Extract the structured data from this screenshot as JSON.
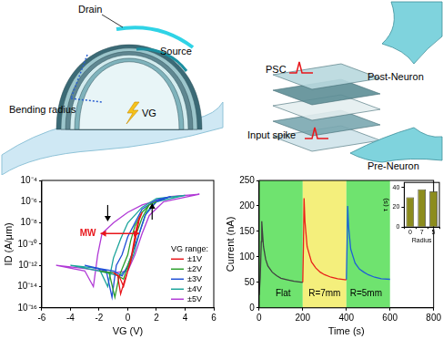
{
  "diagram": {
    "device": {
      "drain": "Drain",
      "source": "Source",
      "bending": "Bending radius",
      "gate": "VG"
    },
    "synapse": {
      "psc": "PSC",
      "input": "Input spike",
      "pre": "Pre-Neuron",
      "post": "Post-Neuron"
    }
  },
  "chart_data": [
    {
      "type": "line",
      "x_label": "VG (V)",
      "y_label": "ID (A/μm)",
      "log": "y",
      "xlim": [
        -6,
        6
      ],
      "xticks": [
        -6,
        -4,
        -2,
        0,
        2,
        4,
        6
      ],
      "ylim": [
        1e-16,
        0.0001
      ],
      "yticks": [
        {
          "value": 1e-16,
          "label": "10⁻¹⁶"
        },
        {
          "value": 1e-14,
          "label": "10⁻¹⁴"
        },
        {
          "value": 1e-12,
          "label": "10⁻¹²"
        },
        {
          "value": 1e-10,
          "label": "10⁻¹⁰"
        },
        {
          "value": 1e-08,
          "label": "10⁻⁸"
        },
        {
          "value": 1e-06,
          "label": "10⁻⁶"
        },
        {
          "value": 0.0001,
          "label": "10⁻⁴"
        }
      ],
      "grid": false,
      "legend": "lower right",
      "legend_title": "VG range:",
      "series": [
        {
          "name": "±1V",
          "color": "#e8161b",
          "x": [
            -1,
            -0.6,
            -0.3,
            0,
            0.2,
            0.4,
            0.6,
            0.8,
            1,
            0.8,
            0.6,
            0.4,
            0.2,
            0,
            -0.2,
            -0.5,
            -0.7,
            -1
          ],
          "values": [
            2e-13,
            1e-13,
            1e-14,
            3e-13,
            2e-12,
            5e-11,
            1e-09,
            2e-08,
            1e-07,
            3e-08,
            3e-09,
            1e-10,
            3e-12,
            3e-13,
            5e-14,
            2e-15,
            1e-13,
            2e-13
          ]
        },
        {
          "name": "±2V",
          "color": "#2ca02c",
          "x": [
            -2,
            -1,
            -0.3,
            0,
            0.3,
            0.6,
            1,
            1.5,
            2,
            1.5,
            1,
            0.5,
            0.2,
            0,
            -0.3,
            -0.6,
            -0.9,
            -1.3,
            -2
          ],
          "values": [
            3e-13,
            2e-13,
            5e-14,
            1e-12,
            1e-11,
            1e-09,
            3e-08,
            5e-07,
            1e-06,
            5e-07,
            1e-07,
            5e-09,
            2e-10,
            1e-11,
            1e-12,
            1e-13,
            1e-15,
            2e-13,
            3e-13
          ]
        },
        {
          "name": "±3V",
          "color": "#1f4fd6",
          "x": [
            -3,
            -2,
            -1,
            -0.4,
            0,
            0.4,
            0.8,
            1.2,
            2,
            3,
            2,
            1,
            0.5,
            0,
            -0.4,
            -0.8,
            -1.1,
            -1.5,
            -3
          ],
          "values": [
            1e-12,
            5e-13,
            3e-13,
            1e-13,
            1e-12,
            3e-11,
            1e-09,
            5e-08,
            1e-06,
            3e-06,
            1.5e-06,
            2e-07,
            1e-08,
            5e-10,
            1e-11,
            1e-12,
            1e-15,
            3e-13,
            1e-12
          ]
        },
        {
          "name": "±4V",
          "color": "#1aa39a",
          "x": [
            -4,
            -2,
            -0.6,
            0,
            0.4,
            0.8,
            1.3,
            2,
            4,
            2,
            1,
            0,
            -0.5,
            -1,
            -1.4,
            -2,
            -4
          ],
          "values": [
            1e-12,
            3e-13,
            1e-13,
            5e-13,
            1e-11,
            1e-09,
            1e-07,
            1e-06,
            4e-06,
            2e-06,
            3e-07,
            1e-08,
            3e-10,
            5e-12,
            1e-14,
            5e-13,
            1e-12
          ]
        },
        {
          "name": "±5V",
          "color": "#b13ad6",
          "x": [
            -5,
            -3,
            -1,
            0,
            0.5,
            1,
            1.5,
            2.5,
            5,
            3,
            1,
            0,
            -1,
            -1.8,
            -2.1,
            -2.4,
            -3,
            -5
          ],
          "values": [
            1e-12,
            5e-13,
            2e-13,
            3e-13,
            1e-11,
            1e-09,
            5e-08,
            1e-06,
            5e-06,
            3e-06,
            5e-07,
            1e-07,
            1e-08,
            1e-09,
            1e-11,
            1e-14,
            3e-13,
            1e-12
          ]
        }
      ],
      "annotations": [
        {
          "text": "MW",
          "x": [
            -1.9,
            0.8
          ],
          "y": 1e-09,
          "color": "#e8161b"
        }
      ],
      "sweep_arrows": [
        {
          "x": 1.7,
          "y": 1e-07,
          "direction": "up"
        },
        {
          "x": -1.4,
          "y": 1e-07,
          "direction": "down"
        }
      ]
    },
    {
      "type": "line",
      "x_label": "Time (s)",
      "y_label": "Current (nA)",
      "xlim": [
        0,
        800
      ],
      "xticks": [
        0,
        200,
        400,
        600,
        800
      ],
      "ylim": [
        0,
        250
      ],
      "yticks": [
        0,
        50,
        100,
        150,
        200,
        250
      ],
      "grid": false,
      "regions": [
        {
          "x": [
            0,
            200
          ],
          "color": "#6fe36f"
        },
        {
          "x": [
            200,
            400
          ],
          "color": "#f4ef7c"
        },
        {
          "x": [
            400,
            600
          ],
          "color": "#6fe36f"
        }
      ],
      "series": [
        {
          "color": "#404040",
          "x": [
            0,
            5,
            10,
            12,
            15,
            20,
            30,
            40,
            60,
            80,
            100,
            130,
            160,
            200
          ],
          "values": [
            25,
            60,
            130,
            170,
            150,
            120,
            95,
            82,
            70,
            63,
            58,
            55,
            52,
            50
          ]
        },
        {
          "color": "#e8211a",
          "x": [
            200,
            203,
            206,
            210,
            220,
            240,
            260,
            280,
            300,
            330,
            360,
            400
          ],
          "values": [
            50,
            120,
            215,
            170,
            120,
            90,
            78,
            70,
            65,
            60,
            57,
            55
          ]
        },
        {
          "color": "#1f5fd6",
          "x": [
            400,
            403,
            406,
            410,
            420,
            440,
            460,
            480,
            500,
            530,
            560,
            600
          ],
          "values": [
            55,
            120,
            200,
            160,
            115,
            88,
            76,
            70,
            65,
            60,
            57,
            56
          ]
        }
      ],
      "annotations": [
        {
          "text": "Flat",
          "x": 110,
          "y": 28
        },
        {
          "text": "R=7mm",
          "x": 300,
          "y": 28
        },
        {
          "text": "R=5mm",
          "x": 490,
          "y": 28
        }
      ]
    },
    {
      "type": "bar",
      "x_label": "Radius",
      "y_label": "τ (s)",
      "categories": [
        "0",
        "7",
        "5"
      ],
      "values": [
        30,
        38,
        36
      ],
      "color": "#8c8c1e",
      "ylim": [
        0,
        45
      ],
      "yticks": [
        0,
        20,
        40
      ],
      "grid": false
    }
  ]
}
